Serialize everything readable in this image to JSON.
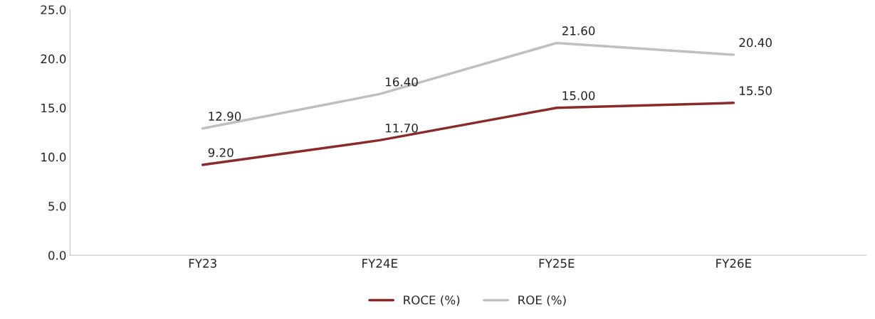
{
  "chart_data": {
    "type": "line",
    "categories": [
      "FY23",
      "FY24E",
      "FY25E",
      "FY26E"
    ],
    "series": [
      {
        "name": "ROCE (%)",
        "color": "#8b2a2a",
        "values": [
          9.2,
          11.7,
          15.0,
          15.5
        ],
        "value_labels": [
          "9.20",
          "11.70",
          "15.00",
          "15.50"
        ]
      },
      {
        "name": "ROE (%)",
        "color": "#bfbfbf",
        "values": [
          12.9,
          16.4,
          21.6,
          20.4
        ],
        "value_labels": [
          "12.90",
          "16.40",
          "21.60",
          "20.40"
        ]
      }
    ],
    "ylim": [
      0,
      25
    ],
    "yticks": [
      {
        "value": 0,
        "label": "0.0"
      },
      {
        "value": 5,
        "label": "5.0"
      },
      {
        "value": 10,
        "label": "10.0"
      },
      {
        "value": 15,
        "label": "15.0"
      },
      {
        "value": 20,
        "label": "20.0"
      },
      {
        "value": 25,
        "label": "25.0"
      }
    ],
    "grid": false,
    "legend": "bottom",
    "marker": "none",
    "line_style": "solid"
  }
}
